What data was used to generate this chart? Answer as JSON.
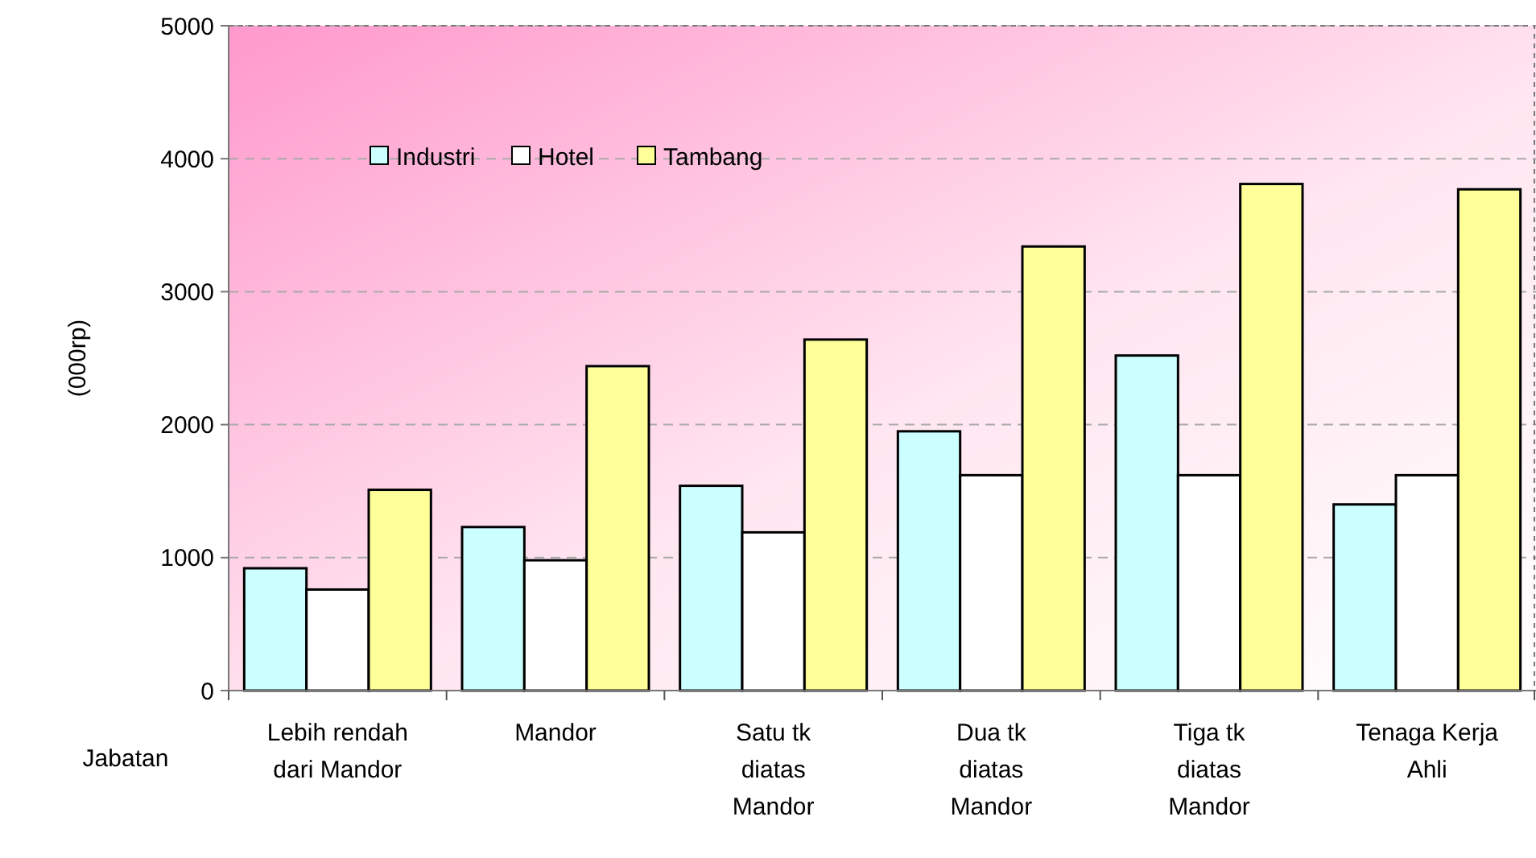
{
  "chart_data": {
    "type": "bar",
    "xlabel": "Jabatan",
    "ylabel": "(000rp)",
    "categories": [
      "Lebih rendah dari Mandor",
      "Mandor",
      "Satu tk diatas Mandor",
      "Dua tk diatas Mandor",
      "Tiga tk diatas Mandor",
      "Tenaga Kerja Ahli"
    ],
    "series": [
      {
        "name": "Industri",
        "color": "#ccffff",
        "values": [
          920,
          1230,
          1540,
          1950,
          2520,
          1400
        ]
      },
      {
        "name": "Hotel",
        "color": "#ffffff",
        "values": [
          760,
          980,
          1190,
          1620,
          1620,
          1620
        ]
      },
      {
        "name": "Tambang",
        "color": "#ffff99",
        "values": [
          1510,
          2440,
          2640,
          3340,
          3810,
          3770
        ]
      }
    ],
    "ylim": [
      0,
      5000
    ],
    "yticks": [
      0,
      1000,
      2000,
      3000,
      4000,
      5000
    ],
    "grid": "y",
    "legend": "top left"
  }
}
